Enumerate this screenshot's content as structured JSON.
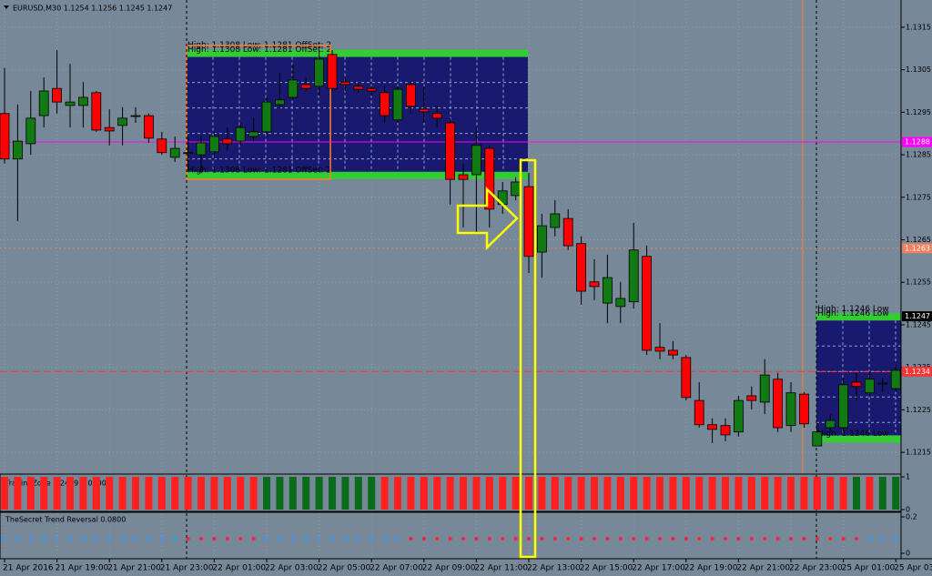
{
  "chart_data": [
    {
      "type": "candlestick",
      "title": "EURUSD,M30 1.1254 1.1256 1.1245 1.1247",
      "categories": [
        "21 Apr 2016",
        null,
        null,
        null,
        "21 Apr 19:00",
        null,
        null,
        null,
        "21 Apr 21:00",
        null,
        null,
        null,
        "21 Apr 23:00",
        null,
        null,
        null,
        "22 Apr 01:00",
        null,
        null,
        null,
        "22 Apr 03:00",
        null,
        null,
        null,
        "22 Apr 05:00",
        null,
        null,
        null,
        "22 Apr 07:00",
        null,
        null,
        null,
        "22 Apr 09:00",
        null,
        null,
        null,
        "22 Apr 11:00",
        null,
        null,
        null,
        "22 Apr 13:00",
        null,
        null,
        null,
        "22 Apr 15:00",
        null,
        null,
        null,
        "22 Apr 17:00",
        null,
        null,
        null,
        "22 Apr 19:00",
        null,
        null,
        null,
        "22 Apr 21:00",
        null,
        null,
        null,
        "22 Apr 23:00",
        null,
        null,
        null,
        "25 Apr 01:00",
        null,
        null,
        null,
        "25 Apr 03:00"
      ],
      "open": [
        1.12947,
        1.1284,
        1.12876,
        1.12942,
        1.13006,
        1.12966,
        1.12966,
        1.12996,
        1.12914,
        1.12919,
        1.12942,
        1.12942,
        1.12887,
        1.12844,
        1.12855,
        1.1285,
        1.12857,
        1.12887,
        1.12882,
        1.12893,
        1.12904,
        1.12968,
        1.12985,
        1.13015,
        1.13011,
        1.13086,
        1.13021,
        1.13011,
        1.13006,
        1.12996,
        1.12932,
        1.13015,
        1.12957,
        1.12947,
        1.12925,
        1.12803,
        1.12803,
        1.12865,
        1.12733,
        1.12754,
        1.12775,
        1.12621,
        1.12679,
        1.127,
        1.12641,
        1.12551,
        1.12501,
        1.12493,
        1.12504,
        1.12611,
        1.12397,
        1.1239,
        1.12373,
        1.12272,
        1.12215,
        1.12213,
        1.12198,
        1.12283,
        1.12268,
        1.12322,
        1.12213,
        1.12287,
        1.12165,
        1.12208,
        1.12208,
        1.12315,
        1.1229,
        1.12313,
        1.123
      ],
      "high": [
        1.13054,
        1.12968,
        1.13,
        1.13032,
        1.13096,
        1.13064,
        1.13021,
        1.13,
        1.12957,
        1.12962,
        1.12962,
        1.12947,
        1.12904,
        1.12893,
        1.12893,
        1.12893,
        1.12904,
        1.12914,
        1.12925,
        1.12936,
        1.12989,
        1.13043,
        1.13064,
        1.13032,
        1.13096,
        1.13096,
        1.13032,
        1.13021,
        1.13011,
        1.13011,
        1.13011,
        1.13021,
        1.13011,
        1.12964,
        1.12936,
        1.12829,
        1.12914,
        1.12872,
        1.12786,
        1.12797,
        1.12807,
        1.12711,
        1.12743,
        1.12722,
        1.12658,
        1.12604,
        1.12615,
        1.12551,
        1.1269,
        1.12636,
        1.12454,
        1.12412,
        1.12379,
        1.12315,
        1.1223,
        1.1223,
        1.12283,
        1.12305,
        1.12369,
        1.12337,
        1.12315,
        1.12292,
        1.12219,
        1.1224,
        1.12326,
        1.12337,
        1.12341,
        1.12326,
        1.12358
      ],
      "low": [
        1.12829,
        1.12694,
        1.1285,
        1.12914,
        1.12947,
        1.12914,
        1.12914,
        1.12904,
        1.12872,
        1.12872,
        1.12925,
        1.12878,
        1.1285,
        1.12833,
        1.12818,
        1.12807,
        1.1284,
        1.12861,
        1.12872,
        1.12882,
        1.12893,
        1.12957,
        1.12979,
        1.13,
        1.12989,
        1.13,
        1.13,
        1.12996,
        1.12989,
        1.12925,
        1.12925,
        1.12947,
        1.12925,
        1.12914,
        1.12733,
        1.12679,
        1.12668,
        1.12679,
        1.12711,
        1.12743,
        1.12572,
        1.12561,
        1.12658,
        1.12626,
        1.12497,
        1.12508,
        1.12454,
        1.12454,
        1.12488,
        1.12379,
        1.12369,
        1.12369,
        1.12272,
        1.12208,
        1.12172,
        1.12176,
        1.12187,
        1.12251,
        1.1224,
        1.12198,
        1.12198,
        1.12208,
        1.12165,
        1.12198,
        1.12198,
        1.12272,
        1.12283,
        1.12292,
        1.12292
      ],
      "close": [
        1.1284,
        1.12882,
        1.12936,
        1.13,
        1.12974,
        1.12974,
        1.12985,
        1.12908,
        1.12906,
        1.12936,
        1.12942,
        1.12889,
        1.12855,
        1.12865,
        1.12855,
        1.12878,
        1.12893,
        1.12876,
        1.12914,
        1.12904,
        1.12974,
        1.12979,
        1.13026,
        1.13006,
        1.13075,
        1.13006,
        1.13015,
        1.13004,
        1.13,
        1.12942,
        1.13004,
        1.12964,
        1.12951,
        1.12936,
        1.12792,
        1.12792,
        1.12872,
        1.12722,
        1.12765,
        1.12786,
        1.12611,
        1.12683,
        1.12711,
        1.12636,
        1.12529,
        1.1254,
        1.12561,
        1.12512,
        1.12626,
        1.1239,
        1.12388,
        1.12379,
        1.12279,
        1.12215,
        1.12204,
        1.12191,
        1.12272,
        1.12272,
        1.12332,
        1.12208,
        1.1229,
        1.12217,
        1.12198,
        1.12225,
        1.12309,
        1.12305,
        1.12322,
        1.12313,
        1.12343
      ],
      "up_color": "#127a12",
      "down_color": "#ff0000",
      "ylim": [
        1.12101,
        1.13214
      ],
      "yticks": [
        1.1215,
        1.1225,
        1.1235,
        1.1245,
        1.1255,
        1.1265,
        1.1275,
        1.1285,
        1.1295,
        1.1305,
        1.1315
      ],
      "grid": true,
      "levels": [
        {
          "value": 1.1288,
          "color": "#ff00ff",
          "style": "solid"
        },
        {
          "value": 1.1263,
          "color": "#f08060",
          "style": "dotted"
        },
        {
          "value": 1.1247,
          "color": "#000000",
          "style": "none"
        },
        {
          "value": 1.1234,
          "color": "#ff3333",
          "style": "dashed"
        }
      ],
      "zones": [
        {
          "high": 1.1308,
          "low": 1.1281,
          "label": "High: 1.1308 Low: 1.1281 OffSet: 2"
        },
        {
          "high": 1.1246,
          "low": 1.1219,
          "label": "High: 1.1246 Low"
        }
      ]
    },
    {
      "type": "histogram",
      "title": "TradingZone 2.2499 1.0000",
      "ylim": [
        0,
        1
      ],
      "yticks": [
        0,
        1
      ],
      "values": [
        1,
        1,
        1,
        1,
        1,
        1,
        1,
        1,
        1,
        1,
        1,
        1,
        1,
        1,
        1,
        1,
        1,
        1,
        1,
        1,
        1,
        1,
        1,
        1,
        1,
        1,
        1,
        1,
        1,
        1,
        1,
        1,
        1,
        1,
        1,
        1,
        1,
        1,
        1,
        1,
        1,
        1,
        1,
        1,
        1,
        1,
        1,
        1,
        1,
        1,
        1,
        1,
        1,
        1,
        1,
        1,
        1,
        1,
        1,
        1,
        1,
        1,
        1,
        1,
        1,
        1,
        1,
        1,
        1
      ],
      "colors": [
        "#ff2020",
        "#ff2020",
        "#ff2020",
        "#ff2020",
        "#ff2020",
        "#ff2020",
        "#ff2020",
        "#ff2020",
        "#ff2020",
        "#ff2020",
        "#ff2020",
        "#ff2020",
        "#ff2020",
        "#ff2020",
        "#ff2020",
        "#ff2020",
        "#ff2020",
        "#ff2020",
        "#ff2020",
        "#ff2020",
        "#0a6b1a",
        "#0a6b1a",
        "#0a6b1a",
        "#0a6b1a",
        "#0a6b1a",
        "#0a6b1a",
        "#0a6b1a",
        "#0a6b1a",
        "#0a6b1a",
        "#ff2020",
        "#ff2020",
        "#ff2020",
        "#ff2020",
        "#ff2020",
        "#ff2020",
        "#ff2020",
        "#ff2020",
        "#ff2020",
        "#ff2020",
        "#ff2020",
        "#ff2020",
        "#ff2020",
        "#ff2020",
        "#ff2020",
        "#ff2020",
        "#ff2020",
        "#ff2020",
        "#ff2020",
        "#ff2020",
        "#ff2020",
        "#ff2020",
        "#ff2020",
        "#ff2020",
        "#ff2020",
        "#ff2020",
        "#ff2020",
        "#ff2020",
        "#ff2020",
        "#ff2020",
        "#ff2020",
        "#ff2020",
        "#ff2020",
        "#ff2020",
        "#ff2020",
        "#ff2020",
        "#0a6b1a",
        "#ff2020",
        "#0a6b1a",
        "#0a6b1a"
      ]
    },
    {
      "type": "dots",
      "title": "TheSecret Trend Reversal 0.0800",
      "ylim": [
        0,
        0.2
      ],
      "yticks": [
        0,
        0.2
      ],
      "values": [
        0.08,
        0.08,
        0.08,
        0.08,
        0.08,
        0.08,
        0.08,
        0.08,
        0.08,
        0.08,
        0.08,
        0.08,
        0.08,
        0.08,
        0.08,
        0.08,
        0.08,
        0.08,
        0.08,
        0.08,
        0.08,
        0.08,
        0.08,
        0.08,
        0.08,
        0.08,
        0.08,
        0.08,
        0.08,
        0.08,
        0.08,
        0.08,
        0.08,
        0.08,
        0.08,
        0.08,
        0.08,
        0.08,
        0.08,
        0.08,
        0.08,
        0.08,
        0.08,
        0.08,
        0.08,
        0.08,
        0.08,
        0.08,
        0.08,
        0.08,
        0.08,
        0.08,
        0.08,
        0.08,
        0.08,
        0.08,
        0.08,
        0.08,
        0.08,
        0.08,
        0.08,
        0.08,
        0.08,
        0.08,
        0.08,
        0.08,
        0.08,
        0.08,
        0.08
      ],
      "colors": [
        "#3399ff",
        "#3399ff",
        "#3399ff",
        "#3399ff",
        "#3399ff",
        "#3399ff",
        "#3399ff",
        "#3399ff",
        "#3399ff",
        "#3399ff",
        "#3399ff",
        "#3399ff",
        "#3399ff",
        "#3399ff",
        "#ff2040",
        "#ff2040",
        "#ff2040",
        "#ff2040",
        "#ff2040",
        "#ff2040",
        "#3399ff",
        "#3399ff",
        "#3399ff",
        "#3399ff",
        "#3399ff",
        "#3399ff",
        "#3399ff",
        "#3399ff",
        "#3399ff",
        "#3399ff",
        "#3399ff",
        "#ff2040",
        "#ff2040",
        "#ff2040",
        "#ff2040",
        "#ff2040",
        "#ff2040",
        "#ff2040",
        "#ff2040",
        "#ff2040",
        "#ff2040",
        "#ff2040",
        "#ff2040",
        "#ff2040",
        "#ff2040",
        "#ff2040",
        "#ff2040",
        "#ff2040",
        "#ff2040",
        "#ff2040",
        "#ff2040",
        "#ff2040",
        "#ff2040",
        "#ff2040",
        "#ff2040",
        "#ff2040",
        "#ff2040",
        "#ff2040",
        "#ff2040",
        "#ff2040",
        "#ff2040",
        "#ff2040",
        "#ff2040",
        "#ff2040",
        "#ff2040",
        "#ff2040",
        "#3399ff",
        "#3399ff",
        "#3399ff"
      ]
    }
  ]
}
